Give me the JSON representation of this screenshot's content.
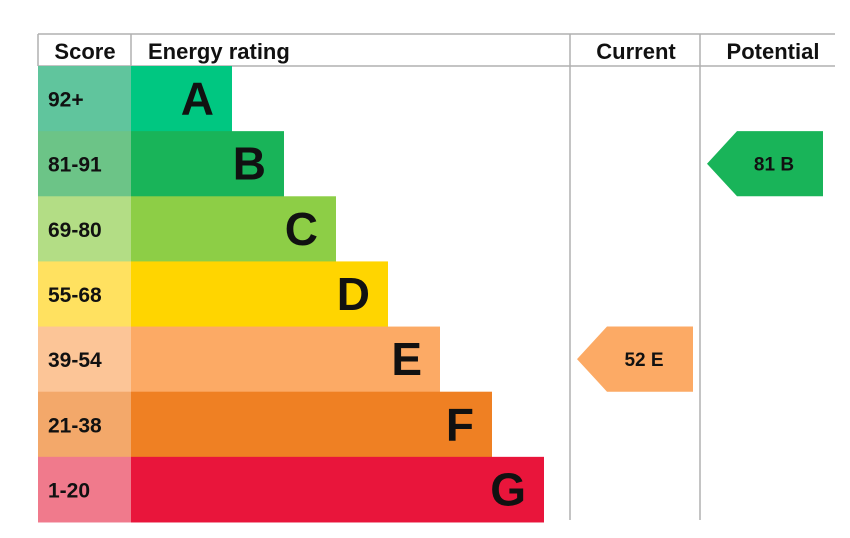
{
  "headers": {
    "score": "Score",
    "energy_rating": "Energy rating",
    "current": "Current",
    "potential": "Potential"
  },
  "chart_data": {
    "type": "bar",
    "title": "",
    "bands": [
      {
        "score": "92+",
        "letter": "A",
        "color": "#00c781",
        "score_color": "#60c59d"
      },
      {
        "score": "81-91",
        "letter": "B",
        "color": "#19b459",
        "score_color": "#6cc487"
      },
      {
        "score": "69-80",
        "letter": "C",
        "color": "#8dce46",
        "score_color": "#b3dd85"
      },
      {
        "score": "55-68",
        "letter": "D",
        "color": "#ffd500",
        "score_color": "#ffe160"
      },
      {
        "score": "39-54",
        "letter": "E",
        "color": "#fcaa65",
        "score_color": "#fcc597"
      },
      {
        "score": "21-38",
        "letter": "F",
        "color": "#ef8023",
        "score_color": "#f3a86a"
      },
      {
        "score": "1-20",
        "letter": "G",
        "color": "#e9153b",
        "score_color": "#f07a8c"
      }
    ],
    "current": {
      "value": 52,
      "letter": "E",
      "label": "52  E",
      "color": "#fcaa65"
    },
    "potential": {
      "value": 81,
      "letter": "B",
      "label": "81  B",
      "color": "#19b459"
    }
  }
}
